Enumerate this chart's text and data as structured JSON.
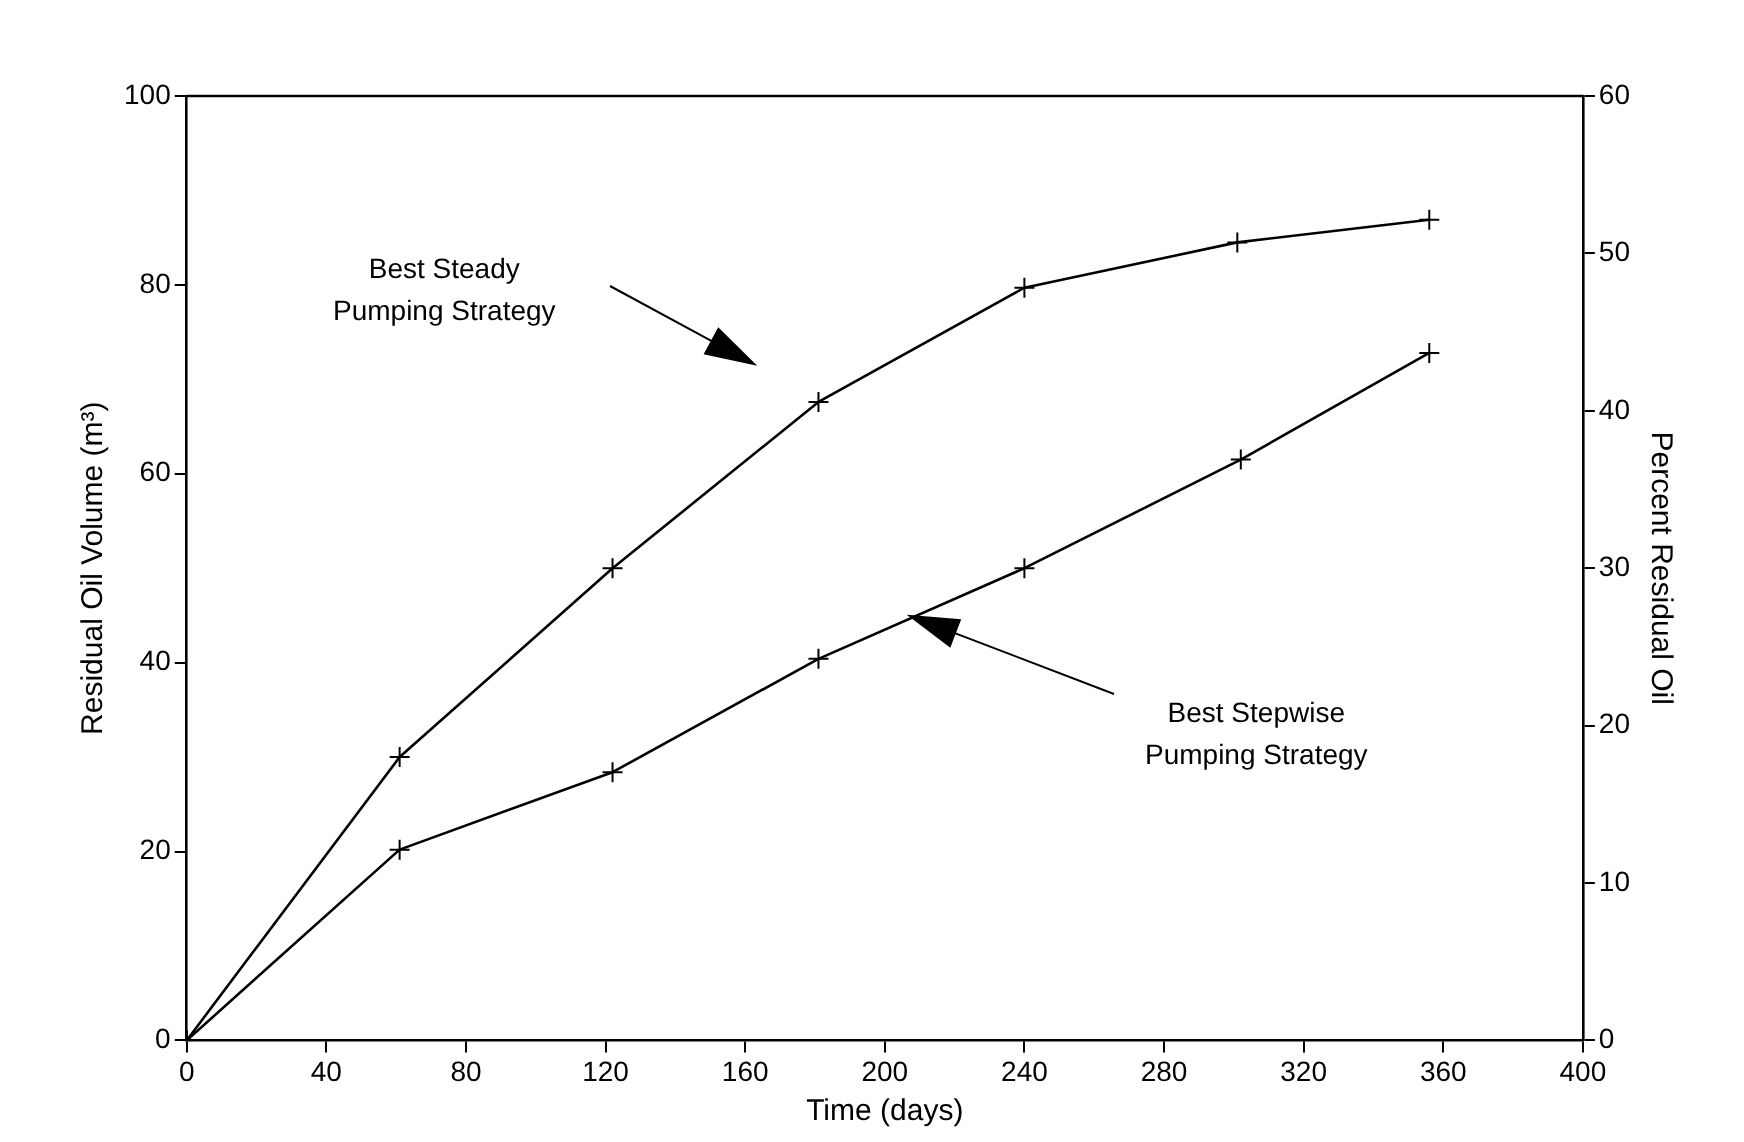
{
  "chart_data": {
    "type": "line",
    "xlabel": "Time (days)",
    "ylabel": "Residual Oil Volume (m³)",
    "y2label": "Percent Residual Oil",
    "xlim": [
      0,
      400
    ],
    "xticks": [
      0,
      40,
      80,
      120,
      160,
      200,
      240,
      280,
      320,
      360,
      400
    ],
    "ylim": [
      0,
      100
    ],
    "yticks": [
      0,
      20,
      40,
      60,
      80,
      100
    ],
    "y2lim": [
      0,
      60
    ],
    "y2ticks": [
      0,
      10,
      20,
      30,
      40,
      50,
      60
    ],
    "grid": false,
    "legend": false,
    "line_style": "solid",
    "marker": "cross",
    "series": [
      {
        "color": "#000000",
        "x": [
          0,
          61,
          122,
          181,
          240,
          301,
          356
        ],
        "values": [
          0,
          30,
          50,
          67.6,
          79.7,
          84.5,
          86.9
        ]
      },
      {
        "color": "#000000",
        "x": [
          0,
          61,
          122,
          181,
          240,
          302,
          356
        ],
        "values": [
          0,
          20.2,
          28.4,
          40.4,
          50,
          61.5,
          72.8
        ]
      }
    ],
    "annotations": [
      "Best Steady\nPumping Strategy",
      "Best Stepwise\nPumping Strategy"
    ]
  }
}
